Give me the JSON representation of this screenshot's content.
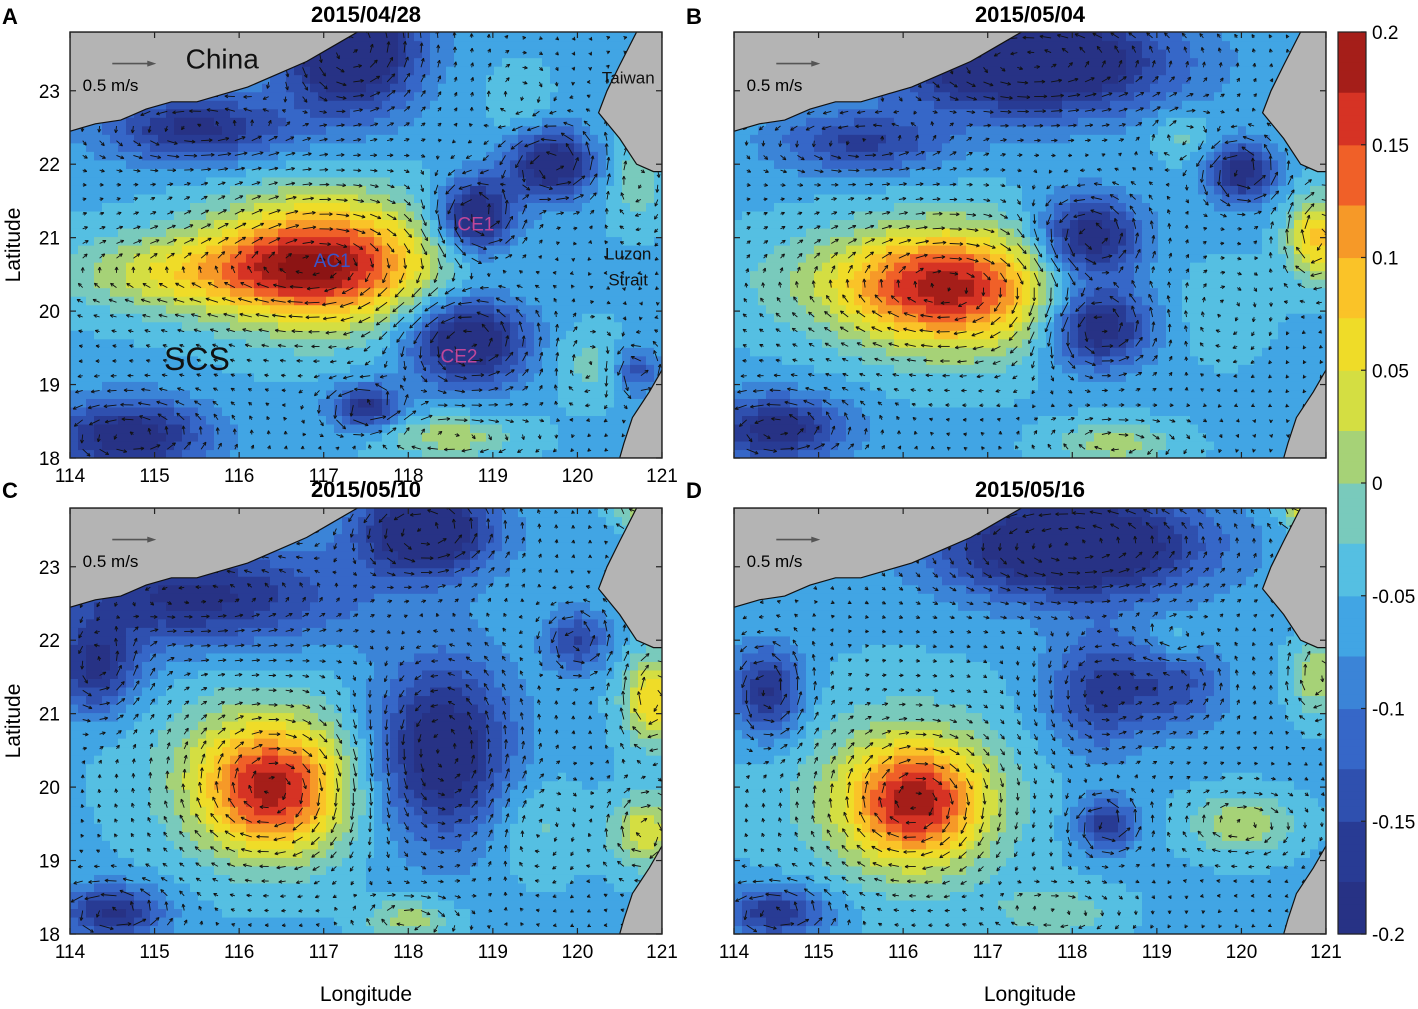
{
  "chart_data": [
    {
      "panel": "A",
      "type": "heatmap",
      "title": "2015/04/28",
      "xlabel": "Longitude",
      "ylabel": "Latitude",
      "xlim": [
        114,
        121
      ],
      "ylim": [
        18,
        23.8
      ],
      "xticks": [
        114,
        115,
        116,
        117,
        118,
        119,
        120,
        121
      ],
      "yticks": [
        18,
        19,
        20,
        21,
        22,
        23
      ],
      "scale_arrow": "0.5 m/s",
      "annotations": [
        {
          "text": "China",
          "x": 115.8,
          "y": 23.3,
          "color": "#111111",
          "size": "large"
        },
        {
          "text": "Taiwan",
          "x": 120.6,
          "y": 23.1,
          "color": "#111111",
          "size": "small"
        },
        {
          "text": "SCS",
          "x": 115.5,
          "y": 19.2,
          "color": "#111111",
          "size": "xlarge"
        },
        {
          "text": "AC1",
          "x": 117.1,
          "y": 20.6,
          "color": "#3a55c8",
          "size": "medium"
        },
        {
          "text": "CE1",
          "x": 118.8,
          "y": 21.1,
          "color": "#c0479a",
          "size": "medium"
        },
        {
          "text": "CE2",
          "x": 118.6,
          "y": 19.3,
          "color": "#c0479a",
          "size": "medium"
        },
        {
          "text": "Luzon",
          "x": 120.6,
          "y": 20.7,
          "color": "#111111",
          "size": "small"
        },
        {
          "text": "Strait",
          "x": 120.6,
          "y": 20.35,
          "color": "#111111",
          "size": "small"
        }
      ],
      "features": [
        {
          "x": 117.0,
          "y": 20.7,
          "amp": 0.2,
          "sx": 1.25,
          "sy": 0.9
        },
        {
          "x": 116.3,
          "y": 20.55,
          "amp": 0.08,
          "sx": 1.7,
          "sy": 0.6
        },
        {
          "x": 115.0,
          "y": 20.5,
          "amp": 0.05,
          "sx": 1.2,
          "sy": 0.5
        },
        {
          "x": 117.3,
          "y": 23.6,
          "amp": -0.2,
          "sx": 0.8,
          "sy": 0.85
        },
        {
          "x": 118.8,
          "y": 21.3,
          "amp": -0.17,
          "sx": 0.45,
          "sy": 0.5
        },
        {
          "x": 118.7,
          "y": 19.6,
          "amp": -0.17,
          "sx": 0.7,
          "sy": 0.6
        },
        {
          "x": 119.7,
          "y": 22.0,
          "amp": -0.16,
          "sx": 0.5,
          "sy": 0.45
        },
        {
          "x": 114.7,
          "y": 18.3,
          "amp": -0.15,
          "sx": 0.9,
          "sy": 0.5
        },
        {
          "x": 115.5,
          "y": 22.5,
          "amp": -0.13,
          "sx": 1.1,
          "sy": 0.45
        },
        {
          "x": 117.5,
          "y": 18.7,
          "amp": -0.13,
          "sx": 0.4,
          "sy": 0.3
        },
        {
          "x": 119.3,
          "y": 22.9,
          "amp": 0.03,
          "sx": 0.35,
          "sy": 0.45
        },
        {
          "x": 118.5,
          "y": 18.3,
          "amp": 0.07,
          "sx": 0.8,
          "sy": 0.3
        },
        {
          "x": 120.1,
          "y": 19.3,
          "amp": 0.04,
          "sx": 0.4,
          "sy": 0.5
        },
        {
          "x": 120.7,
          "y": 21.8,
          "amp": 0.05,
          "sx": 0.35,
          "sy": 0.6
        },
        {
          "x": 120.7,
          "y": 19.2,
          "amp": -0.08,
          "sx": 0.25,
          "sy": 0.3
        }
      ]
    },
    {
      "panel": "B",
      "type": "heatmap",
      "title": "2015/05/04",
      "xlabel": "",
      "ylabel": "",
      "xlim": [
        114,
        121
      ],
      "ylim": [
        18,
        23.8
      ],
      "scale_arrow": "0.5 m/s",
      "annotations": [],
      "features": [
        {
          "x": 116.6,
          "y": 20.3,
          "amp": 0.19,
          "sx": 1.2,
          "sy": 0.85
        },
        {
          "x": 115.8,
          "y": 20.4,
          "amp": 0.07,
          "sx": 1.6,
          "sy": 0.7
        },
        {
          "x": 117.5,
          "y": 23.4,
          "amp": -0.2,
          "sx": 1.6,
          "sy": 0.7
        },
        {
          "x": 118.2,
          "y": 21.0,
          "amp": -0.16,
          "sx": 0.6,
          "sy": 0.55
        },
        {
          "x": 118.3,
          "y": 19.8,
          "amp": -0.16,
          "sx": 0.6,
          "sy": 0.55
        },
        {
          "x": 120.0,
          "y": 21.9,
          "amp": -0.14,
          "sx": 0.4,
          "sy": 0.4
        },
        {
          "x": 114.5,
          "y": 18.4,
          "amp": -0.14,
          "sx": 0.8,
          "sy": 0.45
        },
        {
          "x": 115.5,
          "y": 22.3,
          "amp": -0.1,
          "sx": 1.0,
          "sy": 0.4
        },
        {
          "x": 120.9,
          "y": 21.0,
          "amp": 0.14,
          "sx": 0.35,
          "sy": 0.55
        },
        {
          "x": 118.5,
          "y": 18.2,
          "amp": 0.07,
          "sx": 0.7,
          "sy": 0.3
        },
        {
          "x": 119.3,
          "y": 22.4,
          "amp": 0.04,
          "sx": 0.35,
          "sy": 0.35
        },
        {
          "x": 119.8,
          "y": 20.0,
          "amp": 0.03,
          "sx": 0.5,
          "sy": 0.6
        }
      ]
    },
    {
      "panel": "C",
      "type": "heatmap",
      "title": "2015/05/10",
      "xlabel": "Longitude",
      "ylabel": "Latitude",
      "xlim": [
        114,
        121
      ],
      "ylim": [
        18,
        23.8
      ],
      "xticks": [
        114,
        115,
        116,
        117,
        118,
        119,
        120,
        121
      ],
      "yticks": [
        18,
        19,
        20,
        21,
        22,
        23
      ],
      "scale_arrow": "0.5 m/s",
      "annotations": [],
      "features": [
        {
          "x": 116.4,
          "y": 19.95,
          "amp": 0.19,
          "sx": 0.85,
          "sy": 0.85
        },
        {
          "x": 116.2,
          "y": 20.3,
          "amp": 0.06,
          "sx": 1.3,
          "sy": 1.2
        },
        {
          "x": 118.4,
          "y": 20.5,
          "amp": -0.16,
          "sx": 0.8,
          "sy": 1.2
        },
        {
          "x": 118.2,
          "y": 23.5,
          "amp": -0.18,
          "sx": 0.8,
          "sy": 0.6
        },
        {
          "x": 115.5,
          "y": 22.6,
          "amp": -0.13,
          "sx": 1.8,
          "sy": 0.7
        },
        {
          "x": 114.3,
          "y": 21.6,
          "amp": -0.12,
          "sx": 0.5,
          "sy": 0.6
        },
        {
          "x": 114.5,
          "y": 18.3,
          "amp": -0.13,
          "sx": 0.6,
          "sy": 0.35
        },
        {
          "x": 120.0,
          "y": 22.0,
          "amp": -0.1,
          "sx": 0.35,
          "sy": 0.4
        },
        {
          "x": 120.9,
          "y": 21.2,
          "amp": 0.13,
          "sx": 0.35,
          "sy": 0.6
        },
        {
          "x": 120.8,
          "y": 19.4,
          "amp": 0.1,
          "sx": 0.4,
          "sy": 0.5
        },
        {
          "x": 120.8,
          "y": 23.8,
          "amp": 0.1,
          "sx": 0.3,
          "sy": 0.25
        },
        {
          "x": 119.5,
          "y": 19.5,
          "amp": 0.04,
          "sx": 0.5,
          "sy": 0.7
        },
        {
          "x": 118.0,
          "y": 18.2,
          "amp": 0.07,
          "sx": 0.5,
          "sy": 0.3
        }
      ]
    },
    {
      "panel": "D",
      "type": "heatmap",
      "title": "2015/05/16",
      "xlabel": "Longitude",
      "ylabel": "",
      "xlim": [
        114,
        121
      ],
      "ylim": [
        18,
        23.8
      ],
      "xticks": [
        114,
        115,
        116,
        117,
        118,
        119,
        120,
        121
      ],
      "scale_arrow": "0.5 m/s",
      "annotations": [],
      "features": [
        {
          "x": 116.15,
          "y": 19.8,
          "amp": 0.19,
          "sx": 0.8,
          "sy": 0.8
        },
        {
          "x": 116.0,
          "y": 19.9,
          "amp": 0.06,
          "sx": 1.4,
          "sy": 1.3
        },
        {
          "x": 118.0,
          "y": 23.3,
          "amp": -0.2,
          "sx": 1.5,
          "sy": 0.7
        },
        {
          "x": 118.3,
          "y": 21.3,
          "amp": -0.1,
          "sx": 0.6,
          "sy": 0.8
        },
        {
          "x": 118.4,
          "y": 19.5,
          "amp": -0.12,
          "sx": 0.35,
          "sy": 0.35
        },
        {
          "x": 114.4,
          "y": 21.3,
          "amp": -0.13,
          "sx": 0.4,
          "sy": 0.6
        },
        {
          "x": 114.5,
          "y": 18.3,
          "amp": -0.12,
          "sx": 0.6,
          "sy": 0.35
        },
        {
          "x": 119.2,
          "y": 21.4,
          "amp": -0.08,
          "sx": 0.6,
          "sy": 0.6
        },
        {
          "x": 120.0,
          "y": 19.5,
          "amp": 0.08,
          "sx": 0.6,
          "sy": 0.4
        },
        {
          "x": 120.9,
          "y": 21.5,
          "amp": 0.08,
          "sx": 0.3,
          "sy": 0.5
        },
        {
          "x": 120.8,
          "y": 23.8,
          "amp": 0.12,
          "sx": 0.3,
          "sy": 0.25
        },
        {
          "x": 119.2,
          "y": 22.0,
          "amp": 0.04,
          "sx": 0.3,
          "sy": 0.3
        },
        {
          "x": 117.8,
          "y": 18.3,
          "amp": 0.05,
          "sx": 0.7,
          "sy": 0.35
        }
      ]
    }
  ],
  "colorbar": {
    "min": -0.2,
    "max": 0.2,
    "ticks": [
      -0.2,
      -0.15,
      -0.1,
      -0.05,
      0,
      0.05,
      0.1,
      0.15,
      0.2
    ],
    "tick_labels": [
      "-0.2",
      "-0.15",
      "-0.1",
      "-0.05",
      "0",
      "0.05",
      "0.1",
      "0.15",
      "0.2"
    ]
  },
  "colors": {
    "land": "#b4b4b4",
    "coast": "#111111",
    "arrow": "#111111",
    "background_ocean": "#6fc6ee"
  }
}
